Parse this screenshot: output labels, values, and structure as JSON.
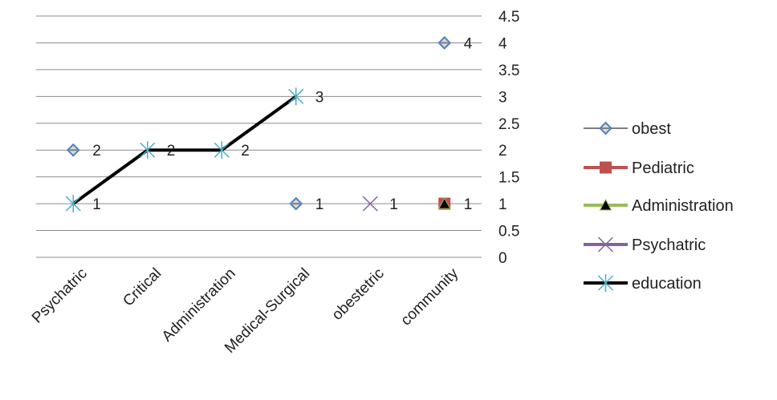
{
  "chart_data": {
    "type": "line",
    "categories": [
      "Psychatric",
      "Critical",
      "Administration",
      "Medical-Surgical",
      "obestetric",
      "community"
    ],
    "ylim": [
      0,
      4.5
    ],
    "yticks": [
      "0",
      "0.5",
      "1",
      "1.5",
      "2",
      "2.5",
      "3",
      "3.5",
      "4",
      "4.5"
    ],
    "y_axis_side": "right",
    "grid": true,
    "legend_position": "right",
    "series": [
      {
        "name": "obest",
        "color": "#4f81bd",
        "marker": "diamond",
        "line": false,
        "values": [
          2,
          null,
          null,
          1,
          null,
          4
        ],
        "labels": [
          "2",
          null,
          null,
          "1",
          null,
          "4"
        ]
      },
      {
        "name": "Pediatric",
        "color": "#c0504d",
        "marker": "square",
        "line": false,
        "values": [
          null,
          null,
          null,
          null,
          null,
          1
        ],
        "labels": [
          null,
          null,
          null,
          null,
          null,
          null
        ]
      },
      {
        "name": "Administration",
        "color": "#9bbb59",
        "marker": "triangle",
        "line": false,
        "values": [
          null,
          null,
          null,
          null,
          null,
          1
        ],
        "labels": [
          null,
          null,
          null,
          null,
          null,
          "1"
        ]
      },
      {
        "name": "Psychatric",
        "color": "#8064a2",
        "marker": "x",
        "line": false,
        "values": [
          null,
          null,
          null,
          null,
          1,
          null
        ],
        "labels": [
          null,
          null,
          null,
          null,
          "1",
          null
        ]
      },
      {
        "name": "education",
        "color": "#4bacc6",
        "marker": "star",
        "line": true,
        "line_color": "#000000",
        "values": [
          1,
          2,
          2,
          3,
          null,
          null
        ],
        "labels": [
          "1",
          "2",
          "2",
          "3",
          null,
          null
        ]
      }
    ]
  }
}
